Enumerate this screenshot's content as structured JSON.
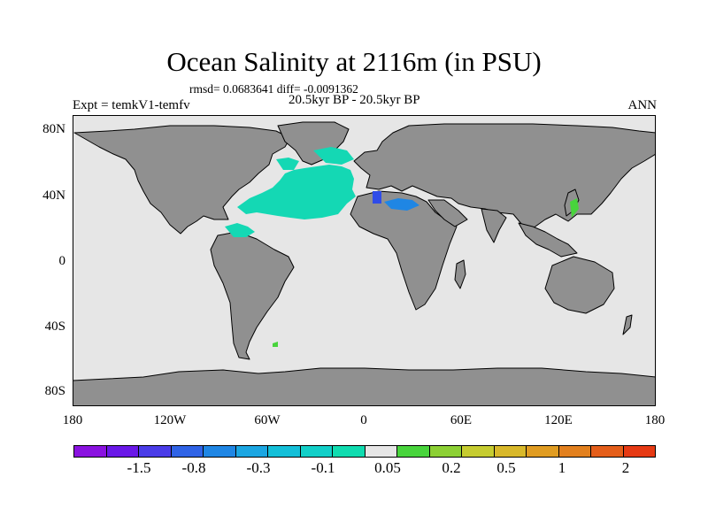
{
  "title": "Ocean Salinity at 2116m (in PSU)",
  "stats": "rmsd= 0.0683641 diff= -0.0091362",
  "time_range": "20.5kyr BP - 20.5kyr BP",
  "experiment": "Expt = temkV1-temfv",
  "season": "ANN",
  "lat_ticks": [
    "80N",
    "40N",
    "0",
    "40S",
    "80S"
  ],
  "lon_ticks": [
    "180",
    "120W",
    "60W",
    "0",
    "60E",
    "120E",
    "180"
  ],
  "colorbar": {
    "colors": [
      "#8a12e0",
      "#6a18e8",
      "#4a3ce8",
      "#2f63e6",
      "#1f86e4",
      "#1ba6e2",
      "#14bfd8",
      "#12cfc8",
      "#10dcb0",
      "#e6e6e6",
      "#48d43c",
      "#8cd034",
      "#c6cc30",
      "#d8b82a",
      "#e09c22",
      "#e2801e",
      "#e45e1a",
      "#e63a14"
    ],
    "labels": [
      "-1.5",
      "-0.8",
      "-0.3",
      "-0.1",
      "0.05",
      "0.2",
      "0.5",
      "1",
      "2"
    ]
  },
  "colors": {
    "land": "#909090",
    "ocean_nodata": "#e6e6e6",
    "anomaly_small_neg": "#14d8b4",
    "anomaly_blue": "#1f86e4",
    "anomaly_green": "#48d43c"
  }
}
